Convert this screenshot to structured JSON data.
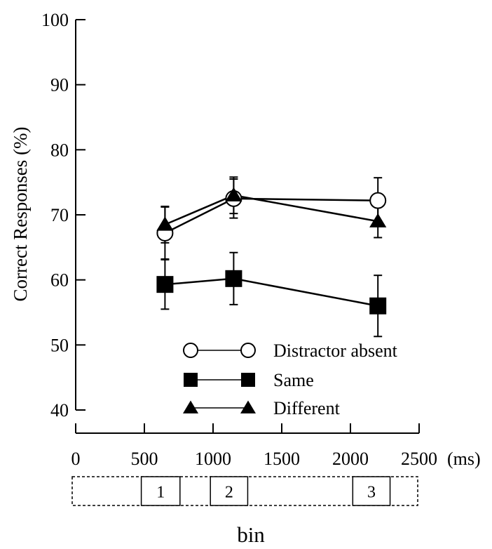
{
  "chart_data": {
    "type": "line",
    "title": "",
    "ylabel": "Correct Responses (%)",
    "xlabel": "bin",
    "x_unit_label": "(ms)",
    "ylim": [
      40,
      100
    ],
    "xlim": [
      0,
      2500
    ],
    "y_ticks": [
      40,
      50,
      60,
      70,
      80,
      90,
      100
    ],
    "x_ticks": [
      0,
      500,
      1000,
      1500,
      2000,
      2500
    ],
    "grid": false,
    "legend_position": "bottom-right",
    "x": [
      650,
      1150,
      2200
    ],
    "series": [
      {
        "name": "Distractor absent",
        "marker": "open-circle",
        "values": [
          67.2,
          72.5,
          72.2
        ],
        "errors": [
          4.0,
          3.0,
          3.5
        ]
      },
      {
        "name": "Same",
        "marker": "filled-square",
        "values": [
          59.3,
          60.2,
          56.0
        ],
        "errors": [
          3.8,
          4.0,
          4.7
        ]
      },
      {
        "name": "Different",
        "marker": "filled-triangle",
        "values": [
          68.5,
          73.0,
          69.0
        ],
        "errors": [
          2.8,
          2.8,
          2.5
        ]
      }
    ],
    "bins": [
      {
        "label": "1",
        "start": 500,
        "end": 780
      },
      {
        "label": "2",
        "start": 1000,
        "end": 1270
      },
      {
        "label": "3",
        "start": 2030,
        "end": 2300
      }
    ],
    "bin_range": [
      0,
      2500
    ]
  }
}
